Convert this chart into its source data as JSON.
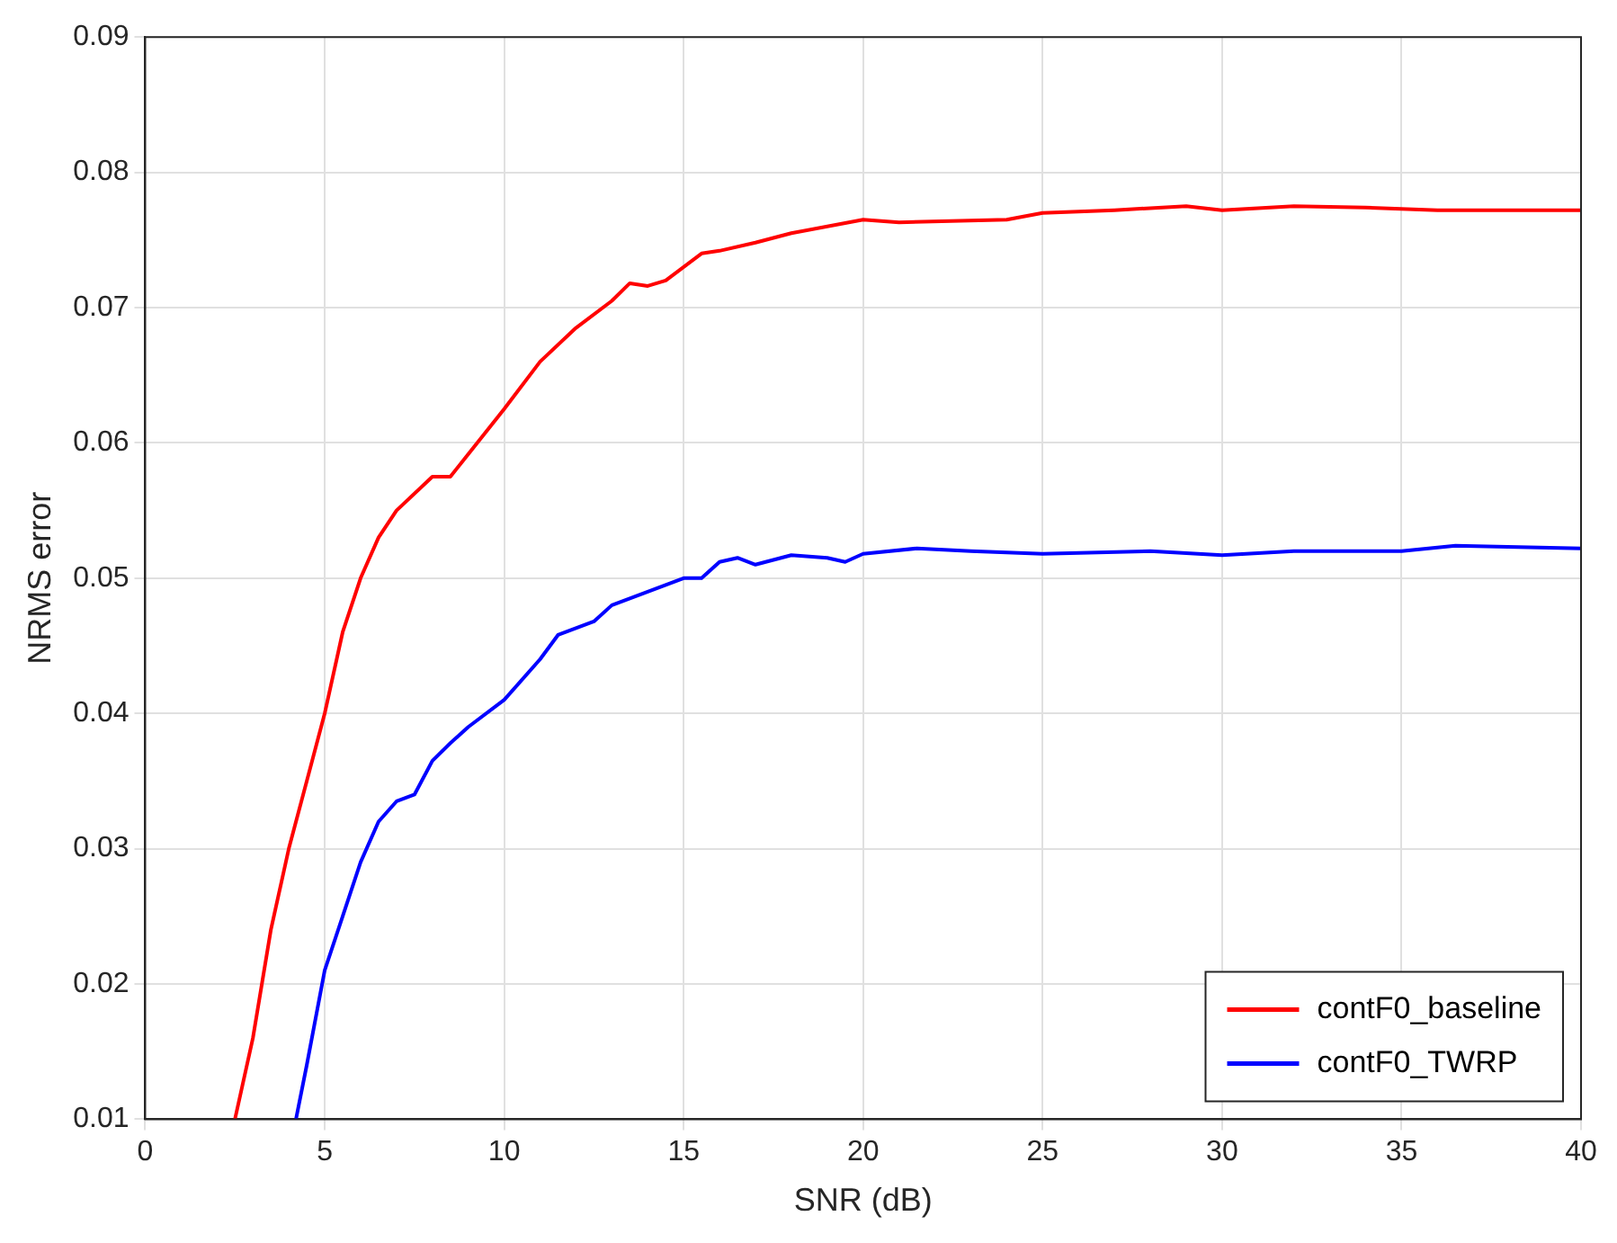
{
  "chart_data": {
    "type": "line",
    "xlabel": "SNR (dB)",
    "ylabel": "NRMS error",
    "xlim": [
      0,
      40
    ],
    "ylim": [
      0.01,
      0.09
    ],
    "xticks": [
      0,
      5,
      10,
      15,
      20,
      25,
      30,
      35,
      40
    ],
    "yticks": [
      0.01,
      0.02,
      0.03,
      0.04,
      0.05,
      0.06,
      0.07,
      0.08,
      0.09
    ],
    "grid": true,
    "legend": "bottom right",
    "marker": "none",
    "line_style": "solid",
    "series": [
      {
        "name": "contF0_baseline",
        "color": "#ff0000",
        "x": [
          2.5,
          3,
          3.5,
          4,
          4.5,
          5,
          5.5,
          6,
          6.5,
          7,
          8,
          8.5,
          10,
          11,
          12,
          13,
          13.5,
          14,
          14.5,
          15.5,
          16,
          17,
          18,
          20,
          21,
          24,
          25,
          27,
          29,
          30,
          32,
          34,
          36,
          40
        ],
        "values": [
          0.01,
          0.016,
          0.024,
          0.03,
          0.035,
          0.04,
          0.046,
          0.05,
          0.053,
          0.055,
          0.0575,
          0.0575,
          0.0625,
          0.066,
          0.0685,
          0.0705,
          0.0718,
          0.0716,
          0.072,
          0.074,
          0.0742,
          0.0748,
          0.0755,
          0.0765,
          0.0763,
          0.0765,
          0.077,
          0.0772,
          0.0775,
          0.0772,
          0.0775,
          0.0774,
          0.0772,
          0.0772
        ]
      },
      {
        "name": "contF0_TWRP",
        "color": "#0000ff",
        "x": [
          4.2,
          4.5,
          5,
          5.5,
          6,
          6.5,
          7,
          7.5,
          8,
          8.5,
          9,
          10,
          11,
          11.5,
          12.5,
          13,
          14,
          15,
          15.5,
          16,
          16.5,
          17,
          18,
          19,
          19.5,
          20,
          21.5,
          23,
          25,
          28,
          30,
          32,
          35,
          36.5,
          40
        ],
        "values": [
          0.01,
          0.014,
          0.021,
          0.025,
          0.029,
          0.032,
          0.0335,
          0.034,
          0.0365,
          0.0378,
          0.039,
          0.041,
          0.044,
          0.0458,
          0.0468,
          0.048,
          0.049,
          0.05,
          0.05,
          0.0512,
          0.0515,
          0.051,
          0.0517,
          0.0515,
          0.0512,
          0.0518,
          0.0522,
          0.052,
          0.0518,
          0.052,
          0.0517,
          0.052,
          0.052,
          0.0524,
          0.0522
        ]
      }
    ]
  }
}
